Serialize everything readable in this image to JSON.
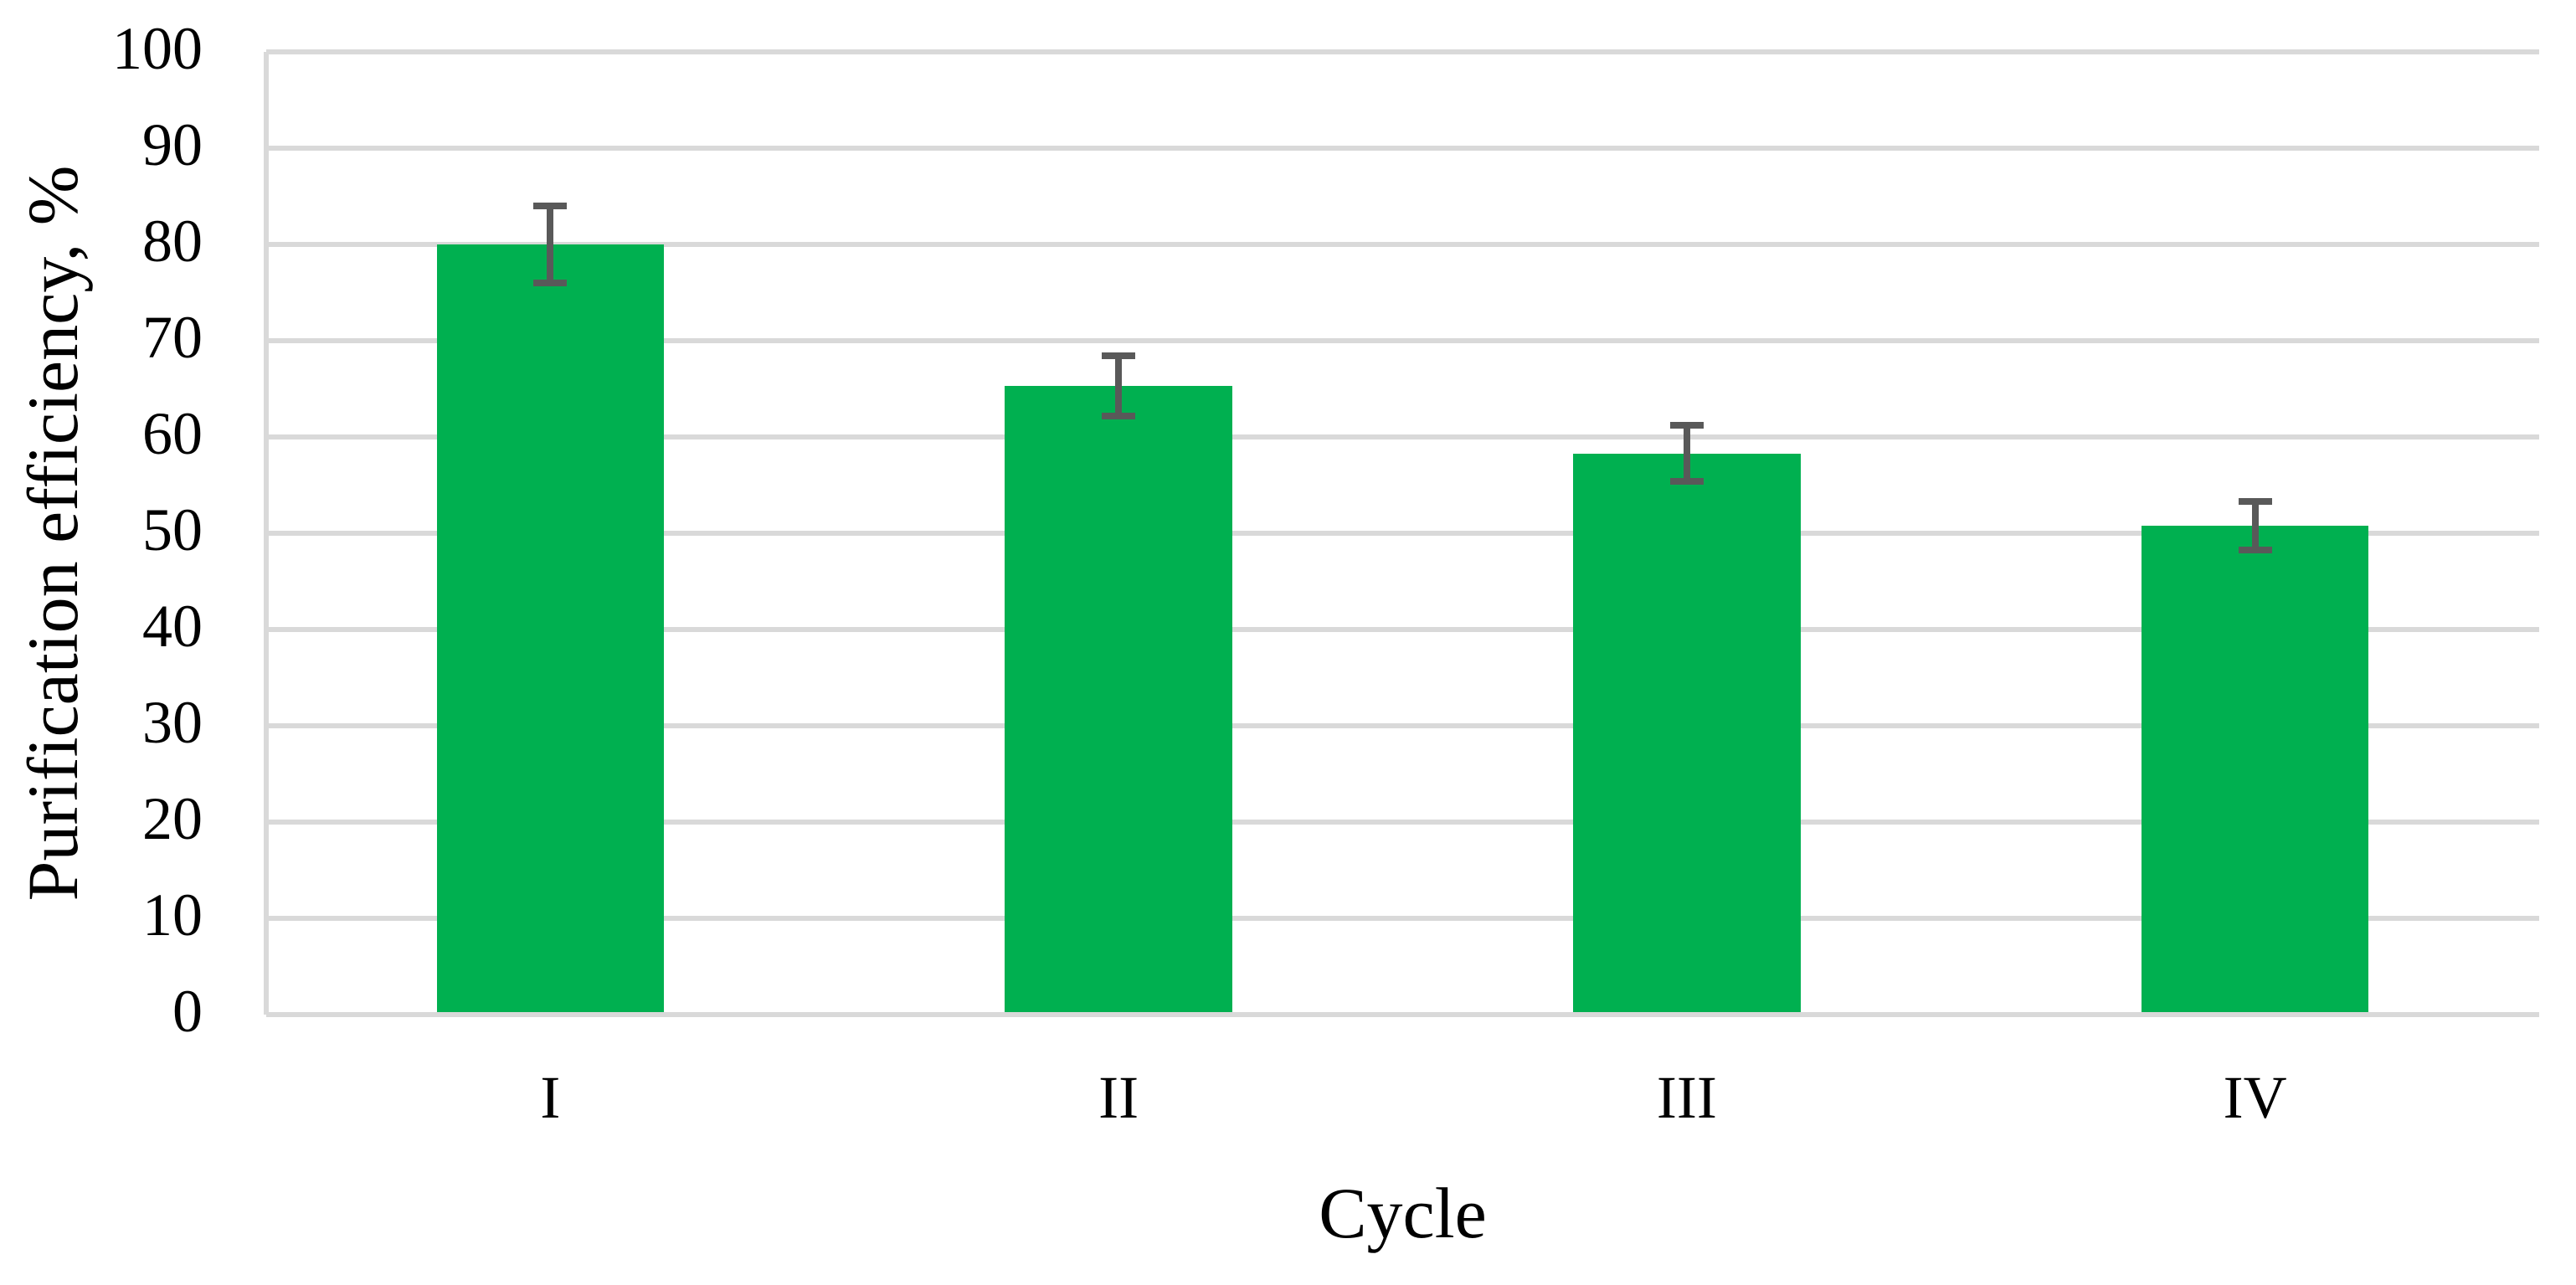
{
  "chart_data": {
    "type": "bar",
    "categories": [
      "I",
      "II",
      "III",
      "IV"
    ],
    "values": [
      80,
      65.3,
      58.3,
      50.8
    ],
    "error_bars": [
      4.0,
      3.1,
      2.9,
      2.5
    ],
    "title": "",
    "xlabel": "Cycle",
    "ylabel": "Purification efficiency, %",
    "ylim": [
      0,
      100
    ],
    "ytick_step": 10,
    "yticks": [
      0,
      10,
      20,
      30,
      40,
      50,
      60,
      70,
      80,
      90,
      100
    ],
    "grid": "horizontal",
    "legend": "none",
    "colors": {
      "bar": "#00B050",
      "error_bar": "#595959",
      "gridline": "#D9D9D9",
      "axis_line": "#D9D9D9",
      "text": "#000000",
      "background": "#FFFFFF"
    }
  }
}
